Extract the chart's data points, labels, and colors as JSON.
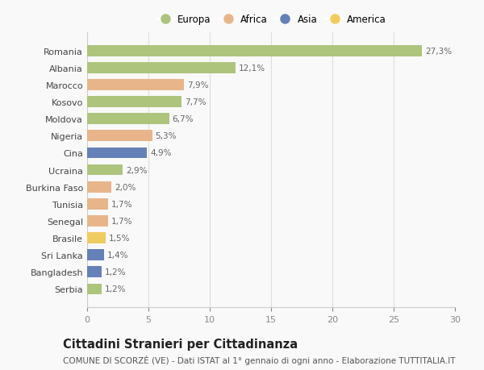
{
  "categories": [
    "Romania",
    "Albania",
    "Marocco",
    "Kosovo",
    "Moldova",
    "Nigeria",
    "Cina",
    "Ucraina",
    "Burkina Faso",
    "Tunisia",
    "Senegal",
    "Brasile",
    "Sri Lanka",
    "Bangladesh",
    "Serbia"
  ],
  "values": [
    27.3,
    12.1,
    7.9,
    7.7,
    6.7,
    5.3,
    4.9,
    2.9,
    2.0,
    1.7,
    1.7,
    1.5,
    1.4,
    1.2,
    1.2
  ],
  "labels": [
    "27,3%",
    "12,1%",
    "7,9%",
    "7,7%",
    "6,7%",
    "5,3%",
    "4,9%",
    "2,9%",
    "2,0%",
    "1,7%",
    "1,7%",
    "1,5%",
    "1,4%",
    "1,2%",
    "1,2%"
  ],
  "continents": [
    "Europa",
    "Europa",
    "Africa",
    "Europa",
    "Europa",
    "Africa",
    "Asia",
    "Europa",
    "Africa",
    "Africa",
    "Africa",
    "America",
    "Asia",
    "Asia",
    "Europa"
  ],
  "continent_colors": {
    "Europa": "#adc47d",
    "Africa": "#e8b58a",
    "Asia": "#6680b8",
    "America": "#f0cc60"
  },
  "legend_order": [
    "Europa",
    "Africa",
    "Asia",
    "America"
  ],
  "title": "Cittadini Stranieri per Cittadinanza",
  "subtitle": "COMUNE DI SCORZÈ (VE) - Dati ISTAT al 1° gennaio di ogni anno - Elaborazione TUTTITALIA.IT",
  "xlim": [
    0,
    30
  ],
  "xticks": [
    0,
    5,
    10,
    15,
    20,
    25,
    30
  ],
  "background_color": "#f9f9f9",
  "grid_color": "#dddddd",
  "bar_height": 0.65,
  "title_fontsize": 10.5,
  "subtitle_fontsize": 7.5,
  "label_fontsize": 7.5,
  "tick_fontsize": 8,
  "legend_fontsize": 8.5
}
